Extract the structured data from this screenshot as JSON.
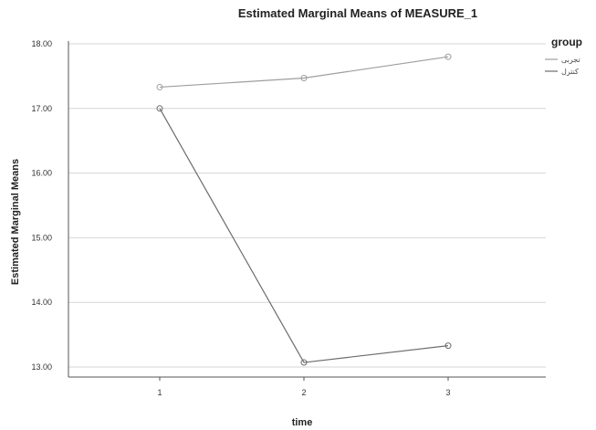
{
  "chart_data": {
    "type": "line",
    "title": "Estimated Marginal Means of MEASURE_1",
    "xlabel": "time",
    "ylabel": "Estimated Marginal Means",
    "categories": [
      "1",
      "2",
      "3"
    ],
    "yticks": [
      "13.00",
      "14.00",
      "15.00",
      "16.00",
      "17.00",
      "18.00"
    ],
    "ylim": [
      12.97,
      18.3
    ],
    "grid": true,
    "legend": {
      "title": "group",
      "placement": "top-right"
    },
    "series": [
      {
        "name": "تجربی",
        "color": "#9e9e9e",
        "values": [
          17.33,
          17.47,
          17.8
        ]
      },
      {
        "name": "کنترل",
        "color": "#6b6b6b",
        "values": [
          17.0,
          13.07,
          13.33
        ]
      }
    ]
  }
}
